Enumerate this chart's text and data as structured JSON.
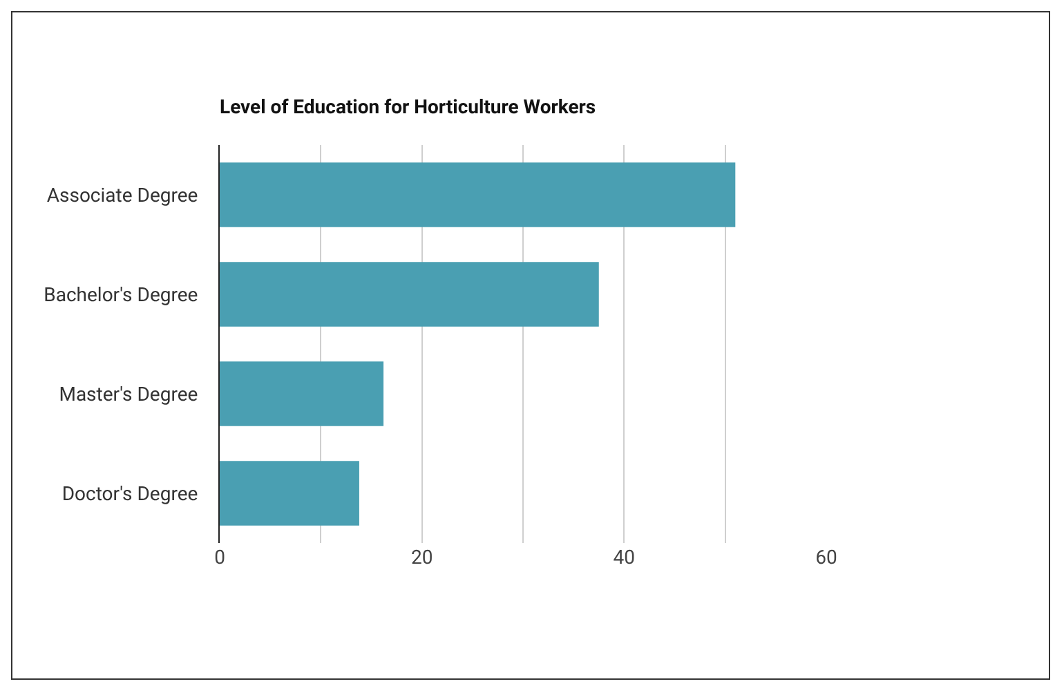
{
  "chart_data": {
    "type": "bar",
    "orientation": "horizontal",
    "title": "Level of Education for Horticulture Workers",
    "categories": [
      "Associate Degree",
      "Bachelor's Degree",
      "Master's Degree",
      "Doctor's Degree"
    ],
    "values": [
      51.0,
      37.5,
      16.2,
      13.8
    ],
    "color": "#4a9fb2",
    "xlim": [
      0,
      60
    ],
    "xticks": [
      0,
      {
        "value": 10,
        "label": null
      },
      20,
      {
        "value": 30,
        "label": null
      },
      40,
      {
        "value": 50,
        "label": null
      },
      60
    ],
    "grid": "x"
  }
}
